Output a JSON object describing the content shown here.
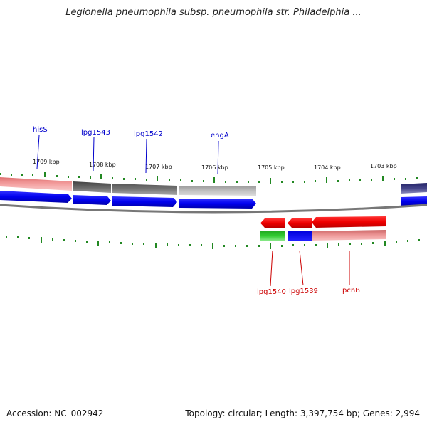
{
  "title": "Legionella pneumophila subsp. pneumophila str. Philadelphia ...",
  "footer": {
    "accession": "Accession: NC_002942",
    "stats": "Topology: circular; Length: 3,397,754 bp; Genes: 2,994"
  },
  "colors": {
    "forward_label": "#0000cc",
    "reverse_label": "#cc0000",
    "tick": "#228822",
    "backbone": "#777777"
  },
  "scale_labels": [
    "1709 kbp",
    "1708 kbp",
    "1707 kbp",
    "1706 kbp",
    "1705 kbp",
    "1704 kbp",
    "1703 kbp"
  ],
  "genes": [
    {
      "name": "hisS",
      "strand": "forward"
    },
    {
      "name": "lpg1543",
      "strand": "forward"
    },
    {
      "name": "lpg1542",
      "strand": "forward"
    },
    {
      "name": "engA",
      "strand": "forward"
    },
    {
      "name": "lpg1540",
      "strand": "reverse"
    },
    {
      "name": "lpg1539",
      "strand": "reverse"
    },
    {
      "name": "pcnB",
      "strand": "reverse"
    }
  ]
}
